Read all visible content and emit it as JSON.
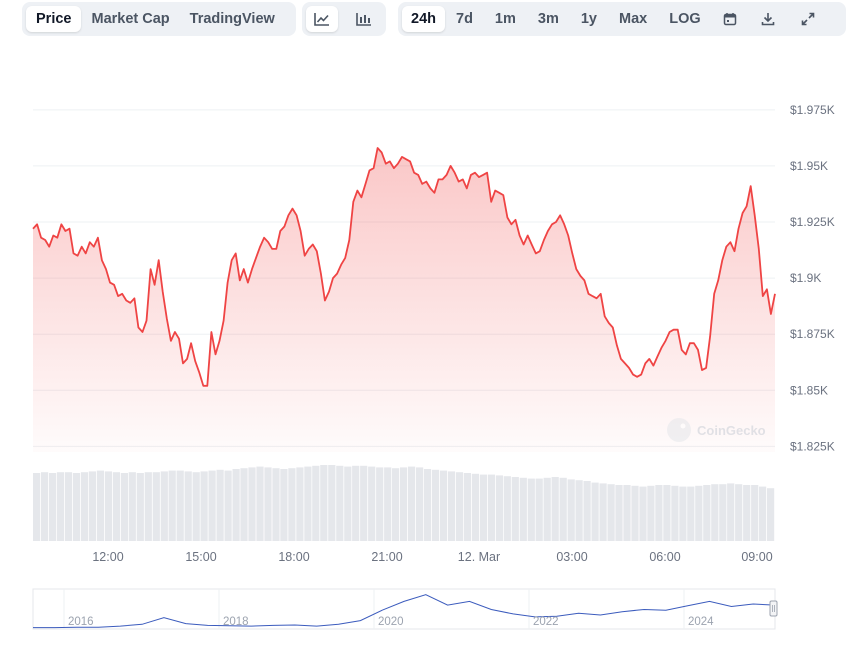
{
  "toolbar": {
    "metric_tabs": [
      {
        "label": "Price",
        "active": true
      },
      {
        "label": "Market Cap",
        "active": false
      },
      {
        "label": "TradingView",
        "active": false
      }
    ],
    "chart_style_icons": [
      {
        "icon": "line-chart-icon",
        "active": true
      },
      {
        "icon": "candlestick-chart-icon",
        "active": false
      }
    ],
    "range_tabs": [
      {
        "label": "24h",
        "active": true
      },
      {
        "label": "7d",
        "active": false
      },
      {
        "label": "1m",
        "active": false
      },
      {
        "label": "3m",
        "active": false
      },
      {
        "label": "1y",
        "active": false
      },
      {
        "label": "Max",
        "active": false
      },
      {
        "label": "LOG",
        "active": false
      }
    ],
    "action_icons": [
      "calendar-icon",
      "download-icon",
      "expand-icon"
    ]
  },
  "watermark": "CoinGecko",
  "colors": {
    "line": "#ef4444",
    "volume": "#e5e7eb",
    "navigator": "#3b5bbd",
    "grid": "#eef0f3",
    "axis_text": "#6b7280"
  },
  "chart_data": [
    {
      "type": "area",
      "series": [
        {
          "values": [
            1.922,
            1.924,
            1.918,
            1.917,
            1.914,
            1.919,
            1.918,
            1.924,
            1.921,
            1.922,
            1.911,
            1.91,
            1.914,
            1.911,
            1.916,
            1.914,
            1.918,
            1.908,
            1.904,
            1.898,
            1.897,
            1.892,
            1.893,
            1.89,
            1.889,
            1.891,
            1.878,
            1.876,
            1.881,
            1.904,
            1.897,
            1.908,
            1.894,
            1.882,
            1.872,
            1.876,
            1.873,
            1.862,
            1.864,
            1.871,
            1.863,
            1.858,
            1.852,
            1.852,
            1.876,
            1.866,
            1.872,
            1.881,
            1.898,
            1.908,
            1.911,
            1.899,
            1.904,
            1.898,
            1.904,
            1.909,
            1.914,
            1.918,
            1.916,
            1.913,
            1.913,
            1.921,
            1.923,
            1.928,
            1.931,
            1.928,
            1.921,
            1.91,
            1.913,
            1.915,
            1.912,
            1.902,
            1.89,
            1.894,
            1.9,
            1.902,
            1.906,
            1.909,
            1.917,
            1.934,
            1.939,
            1.936,
            1.942,
            1.948,
            1.949,
            1.958,
            1.956,
            1.951,
            1.952,
            1.949,
            1.951,
            1.954,
            1.953,
            1.952,
            1.947,
            1.946,
            1.942,
            1.943,
            1.94,
            1.938,
            1.944,
            1.944,
            1.946,
            1.95,
            1.947,
            1.943,
            1.944,
            1.94,
            1.946,
            1.947,
            1.945,
            1.946,
            1.947,
            1.934,
            1.939,
            1.938,
            1.937,
            1.927,
            1.924,
            1.926,
            1.919,
            1.915,
            1.919,
            1.915,
            1.911,
            1.912,
            1.917,
            1.921,
            1.924,
            1.925,
            1.928,
            1.924,
            1.919,
            1.911,
            1.904,
            1.901,
            1.899,
            1.893,
            1.892,
            1.891,
            1.893,
            1.883,
            1.88,
            1.878,
            1.87,
            1.864,
            1.862,
            1.86,
            1.857,
            1.856,
            1.857,
            1.862,
            1.864,
            1.861,
            1.865,
            1.869,
            1.872,
            1.876,
            1.877,
            1.877,
            1.868,
            1.866,
            1.871,
            1.871,
            1.868,
            1.859,
            1.86,
            1.874,
            1.893,
            1.899,
            1.908,
            1.914,
            1.916,
            1.912,
            1.922,
            1.929,
            1.932,
            1.941,
            1.928,
            1.913,
            1.892,
            1.895,
            1.884,
            1.893
          ]
        }
      ],
      "xlabels": [
        "12:00",
        "15:00",
        "18:00",
        "21:00",
        "12. Mar",
        "03:00",
        "06:00",
        "09:00"
      ],
      "yticks": [
        "$1.825K",
        "$1.85K",
        "$1.875K",
        "$1.9K",
        "$1.925K",
        "$1.95K",
        "$1.975K"
      ],
      "ylim": [
        1.8225,
        1.9825
      ],
      "grid": true
    },
    {
      "type": "bar",
      "series": [
        {
          "values": [
            0.85,
            0.86,
            0.85,
            0.86,
            0.86,
            0.85,
            0.86,
            0.87,
            0.88,
            0.87,
            0.86,
            0.85,
            0.86,
            0.85,
            0.86,
            0.86,
            0.87,
            0.88,
            0.88,
            0.87,
            0.86,
            0.87,
            0.88,
            0.89,
            0.88,
            0.9,
            0.91,
            0.92,
            0.93,
            0.92,
            0.91,
            0.9,
            0.91,
            0.92,
            0.93,
            0.94,
            0.95,
            0.95,
            0.94,
            0.93,
            0.94,
            0.94,
            0.93,
            0.92,
            0.92,
            0.91,
            0.92,
            0.93,
            0.92,
            0.9,
            0.89,
            0.88,
            0.87,
            0.86,
            0.85,
            0.84,
            0.83,
            0.83,
            0.82,
            0.81,
            0.8,
            0.79,
            0.78,
            0.78,
            0.79,
            0.8,
            0.79,
            0.77,
            0.76,
            0.75,
            0.73,
            0.72,
            0.71,
            0.7,
            0.7,
            0.69,
            0.68,
            0.69,
            0.7,
            0.7,
            0.69,
            0.68,
            0.68,
            0.69,
            0.7,
            0.71,
            0.71,
            0.72,
            0.71,
            0.7,
            0.7,
            0.68,
            0.66
          ]
        }
      ]
    },
    {
      "type": "line",
      "xlabels": [
        "2016",
        "2018",
        "2020",
        "2022",
        "2024"
      ],
      "series": [
        {
          "values": [
            0.01,
            0.01,
            0.02,
            0.02,
            0.05,
            0.1,
            0.28,
            0.12,
            0.07,
            0.06,
            0.05,
            0.07,
            0.08,
            0.05,
            0.1,
            0.2,
            0.48,
            0.72,
            0.9,
            0.62,
            0.72,
            0.5,
            0.38,
            0.3,
            0.32,
            0.4,
            0.35,
            0.44,
            0.5,
            0.48,
            0.6,
            0.72,
            0.58,
            0.65,
            0.62
          ]
        }
      ]
    }
  ]
}
